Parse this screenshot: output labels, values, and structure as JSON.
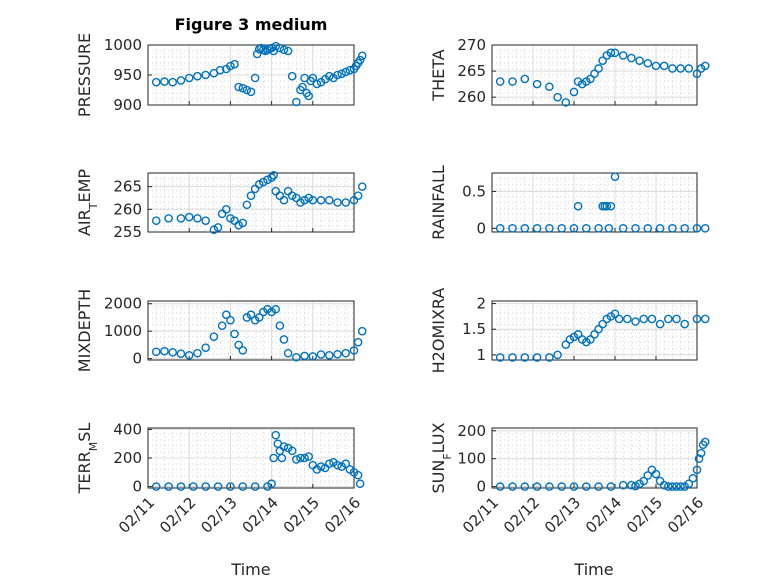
{
  "figure_title": "Figure 3 medium",
  "x_axis_label": "Time",
  "x_tick_labels": [
    "02/11",
    "02/12",
    "02/13",
    "02/14",
    "02/15",
    "02/16"
  ],
  "colors": {
    "marker": "#0072BD",
    "axes": "#262626"
  },
  "chart_data": [
    {
      "type": "scatter",
      "ylabel": "PRESSURE",
      "ylabel_sub": null,
      "title": "Figure 3 medium",
      "xlabel": "",
      "ylim": [
        900,
        1000
      ],
      "yticks": [
        900,
        950,
        1000
      ],
      "ytick_labels": [
        "900",
        "950",
        "1000"
      ],
      "x": [
        0.2,
        0.4,
        0.6,
        0.8,
        1.0,
        1.2,
        1.4,
        1.6,
        1.75,
        1.9,
        2.0,
        2.1,
        2.2,
        2.3,
        2.4,
        2.5,
        2.6,
        2.65,
        2.7,
        2.75,
        2.8,
        2.85,
        2.9,
        2.95,
        3.0,
        3.05,
        3.1,
        3.2,
        3.3,
        3.4,
        3.5,
        3.6,
        3.7,
        3.75,
        3.8,
        3.85,
        3.9,
        3.95,
        4.0,
        4.1,
        4.2,
        4.3,
        4.4,
        4.5,
        4.6,
        4.7,
        4.8,
        4.9,
        5.0,
        5.05,
        5.1,
        5.15,
        5.2
      ],
      "y": [
        938,
        939,
        938,
        941,
        945,
        948,
        950,
        953,
        958,
        960,
        965,
        968,
        930,
        928,
        925,
        922,
        945,
        985,
        993,
        995,
        992,
        990,
        992,
        994,
        995,
        990,
        998,
        995,
        992,
        990,
        948,
        905,
        925,
        930,
        945,
        920,
        915,
        940,
        945,
        935,
        938,
        943,
        948,
        945,
        950,
        952,
        955,
        958,
        960,
        965,
        970,
        975,
        982
      ]
    },
    {
      "type": "scatter",
      "ylabel": "THETA",
      "ylabel_sub": null,
      "ylim": [
        258.5,
        270
      ],
      "yticks": [
        260,
        265,
        270
      ],
      "ytick_labels": [
        "260",
        "265",
        "270"
      ],
      "x": [
        0.2,
        0.5,
        0.8,
        1.1,
        1.4,
        1.6,
        1.8,
        2.0,
        2.1,
        2.2,
        2.3,
        2.4,
        2.5,
        2.6,
        2.7,
        2.8,
        2.9,
        3.0,
        3.2,
        3.4,
        3.6,
        3.8,
        4.0,
        4.2,
        4.4,
        4.6,
        4.8,
        5.0,
        5.1,
        5.2
      ],
      "y": [
        263,
        263,
        263.5,
        262.5,
        262,
        260,
        259,
        261,
        263,
        262.5,
        263,
        263.5,
        264.5,
        265.5,
        267,
        268,
        268.5,
        268.5,
        268,
        267.5,
        267,
        266.5,
        266,
        266,
        265.5,
        265.5,
        265.5,
        264.5,
        265.5,
        266
      ]
    },
    {
      "type": "scatter",
      "ylabel": "AIR",
      "ylabel_sub": "T",
      "ylabel_rest": "EMP",
      "ylim": [
        255,
        268
      ],
      "yticks": [
        255,
        260,
        265
      ],
      "ytick_labels": [
        "255",
        "260",
        "265"
      ],
      "x": [
        0.2,
        0.5,
        0.8,
        1.0,
        1.2,
        1.4,
        1.6,
        1.7,
        1.8,
        1.9,
        2.0,
        2.1,
        2.2,
        2.3,
        2.4,
        2.5,
        2.6,
        2.7,
        2.8,
        2.9,
        3.0,
        3.05,
        3.1,
        3.2,
        3.3,
        3.4,
        3.5,
        3.6,
        3.7,
        3.8,
        3.9,
        4.0,
        4.2,
        4.4,
        4.6,
        4.8,
        5.0,
        5.1,
        5.2
      ],
      "y": [
        257.5,
        258,
        258,
        258.3,
        258,
        257.5,
        255.5,
        256,
        259,
        260,
        258,
        257.5,
        256.5,
        257,
        261,
        263,
        264.5,
        265.5,
        266,
        266.5,
        267,
        267.5,
        264,
        263,
        262,
        264,
        263,
        262.5,
        261.5,
        262,
        262.5,
        262,
        262,
        262,
        261.5,
        261.5,
        262,
        263,
        265
      ]
    },
    {
      "type": "scatter",
      "ylabel": "RAINFALL",
      "ylabel_sub": null,
      "ylim": [
        -0.05,
        0.75
      ],
      "yticks": [
        0,
        0.5
      ],
      "ytick_labels": [
        "0",
        "0.5"
      ],
      "x": [
        0.2,
        0.5,
        0.8,
        1.1,
        1.4,
        1.7,
        2.0,
        2.1,
        2.3,
        2.6,
        2.7,
        2.75,
        2.8,
        2.85,
        2.9,
        3.0,
        3.2,
        3.5,
        3.8,
        4.1,
        4.4,
        4.7,
        5.0,
        5.2
      ],
      "y": [
        0,
        0,
        0,
        0,
        0,
        0,
        0,
        0.3,
        0,
        0,
        0.3,
        0.3,
        0.3,
        0,
        0.3,
        0.7,
        0,
        0,
        0,
        0,
        0,
        0,
        0,
        0
      ]
    },
    {
      "type": "scatter",
      "ylabel": "MIXDEPTH",
      "ylabel_sub": null,
      "ylim": [
        -50,
        2100
      ],
      "yticks": [
        0,
        1000,
        2000
      ],
      "ytick_labels": [
        "0",
        "1000",
        "2000"
      ],
      "x": [
        0.2,
        0.4,
        0.6,
        0.8,
        1.0,
        1.2,
        1.4,
        1.6,
        1.8,
        1.9,
        2.0,
        2.1,
        2.2,
        2.3,
        2.4,
        2.5,
        2.6,
        2.7,
        2.8,
        2.9,
        3.0,
        3.1,
        3.2,
        3.3,
        3.4,
        3.6,
        3.8,
        4.0,
        4.2,
        4.4,
        4.6,
        4.8,
        5.0,
        5.1,
        5.2
      ],
      "y": [
        250,
        270,
        230,
        180,
        120,
        200,
        400,
        800,
        1200,
        1600,
        1400,
        900,
        500,
        300,
        1500,
        1600,
        1400,
        1500,
        1700,
        1800,
        1700,
        1800,
        1200,
        700,
        200,
        50,
        100,
        80,
        150,
        120,
        160,
        200,
        300,
        600,
        1000
      ]
    },
    {
      "type": "scatter",
      "ylabel": "H2OMIXRA",
      "ylabel_sub": null,
      "ylim": [
        0.9,
        2.05
      ],
      "yticks": [
        1,
        1.5,
        2
      ],
      "ytick_labels": [
        "1",
        "1.5",
        "2"
      ],
      "x": [
        0.2,
        0.5,
        0.8,
        1.1,
        1.4,
        1.6,
        1.8,
        1.9,
        2.0,
        2.1,
        2.2,
        2.3,
        2.4,
        2.5,
        2.6,
        2.7,
        2.8,
        2.9,
        3.0,
        3.1,
        3.3,
        3.5,
        3.7,
        3.9,
        4.1,
        4.3,
        4.5,
        4.7,
        5.0,
        5.2
      ],
      "y": [
        0.95,
        0.95,
        0.95,
        0.95,
        0.95,
        1.0,
        1.2,
        1.3,
        1.35,
        1.4,
        1.3,
        1.25,
        1.3,
        1.4,
        1.5,
        1.6,
        1.7,
        1.75,
        1.8,
        1.7,
        1.7,
        1.65,
        1.7,
        1.7,
        1.6,
        1.7,
        1.7,
        1.6,
        1.7,
        1.7
      ]
    },
    {
      "type": "scatter",
      "ylabel": "TERR",
      "ylabel_sub": "M",
      "ylabel_rest": "SL",
      "ylim": [
        -10,
        410
      ],
      "yticks": [
        0,
        200,
        400
      ],
      "ytick_labels": [
        "0",
        "200",
        "400"
      ],
      "x": [
        0.2,
        0.5,
        0.8,
        1.1,
        1.4,
        1.7,
        2.0,
        2.3,
        2.6,
        2.9,
        3.0,
        3.05,
        3.1,
        3.15,
        3.2,
        3.25,
        3.3,
        3.4,
        3.5,
        3.6,
        3.7,
        3.8,
        3.9,
        4.0,
        4.1,
        4.2,
        4.3,
        4.4,
        4.5,
        4.6,
        4.7,
        4.8,
        4.9,
        5.0,
        5.1,
        5.15
      ],
      "y": [
        0,
        0,
        0,
        0,
        0,
        0,
        0,
        0,
        0,
        0,
        20,
        200,
        360,
        300,
        250,
        200,
        280,
        270,
        250,
        190,
        200,
        200,
        210,
        150,
        120,
        140,
        130,
        160,
        170,
        150,
        140,
        160,
        120,
        100,
        80,
        20
      ]
    },
    {
      "type": "scatter",
      "ylabel": "SUN",
      "ylabel_sub": "F",
      "ylabel_rest": "LUX",
      "ylim": [
        -5,
        210
      ],
      "yticks": [
        0,
        100,
        200
      ],
      "ytick_labels": [
        "0",
        "100",
        "200"
      ],
      "x": [
        0.2,
        0.5,
        0.8,
        1.1,
        1.4,
        1.7,
        2.0,
        2.3,
        2.6,
        2.9,
        3.2,
        3.4,
        3.5,
        3.6,
        3.7,
        3.8,
        3.9,
        4.0,
        4.1,
        4.2,
        4.3,
        4.4,
        4.5,
        4.6,
        4.7,
        4.8,
        4.9,
        5.0,
        5.05,
        5.1,
        5.15,
        5.2
      ],
      "y": [
        0,
        0,
        0,
        0,
        0,
        0,
        0,
        0,
        0,
        0,
        5,
        5,
        2,
        10,
        20,
        40,
        60,
        45,
        20,
        5,
        0,
        0,
        0,
        0,
        0,
        10,
        30,
        60,
        100,
        120,
        150,
        160
      ]
    }
  ]
}
